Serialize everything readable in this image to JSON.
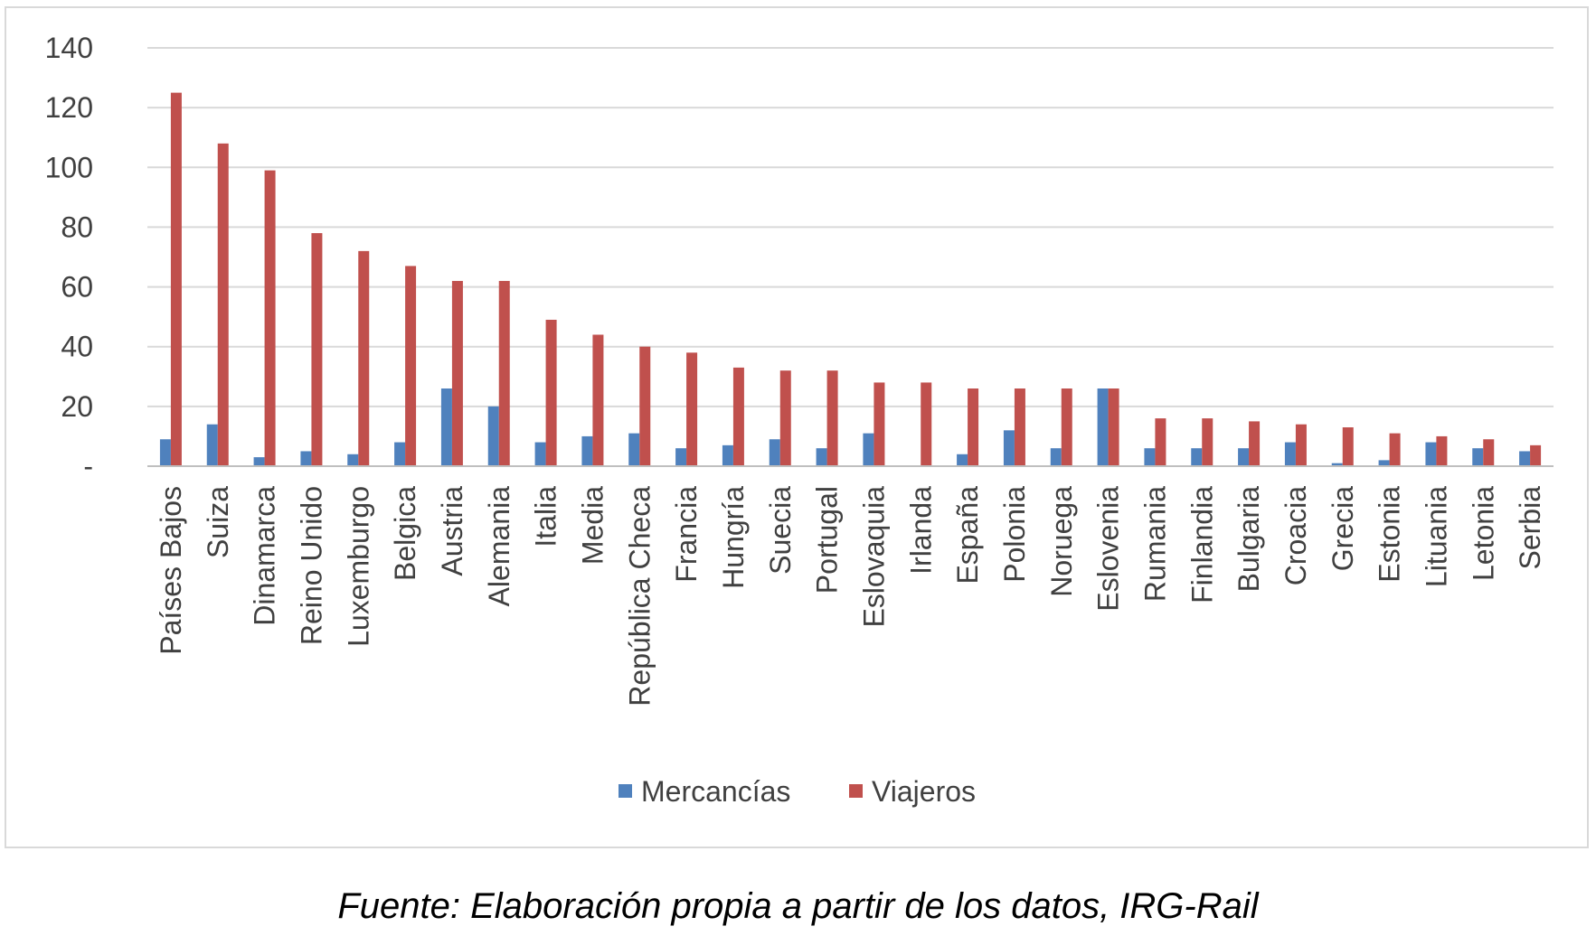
{
  "chart_data": {
    "type": "bar",
    "title": "",
    "xlabel": "",
    "ylabel": "",
    "ylim": [
      0,
      140
    ],
    "yticks": [
      0,
      20,
      40,
      60,
      80,
      100,
      120,
      140
    ],
    "ytick_labels": [
      "-",
      "20",
      "40",
      "60",
      "80",
      "100",
      "120",
      "140"
    ],
    "grid": true,
    "legend_position": "bottom",
    "categories": [
      "Países Bajos",
      "Suiza",
      "Dinamarca",
      "Reino Unido",
      "Luxemburgo",
      "Belgica",
      "Austria",
      "Alemania",
      "Italia",
      "Media",
      "República Checa",
      "Francia",
      "Hungría",
      "Suecia",
      "Portugal",
      "Eslovaquia",
      "Irlanda",
      "España",
      "Polonia",
      "Noruega",
      "Eslovenia",
      "Rumania",
      "Finlandia",
      "Bulgaria",
      "Croacia",
      "Grecia",
      "Estonia",
      "Lituania",
      "Letonia",
      "Serbia"
    ],
    "series": [
      {
        "name": "Mercancías",
        "color": "#4F81BD",
        "values": [
          9,
          14,
          3,
          5,
          4,
          8,
          26,
          20,
          8,
          10,
          11,
          6,
          7,
          9,
          6,
          11,
          0,
          4,
          12,
          6,
          26,
          6,
          6,
          6,
          8,
          1,
          2,
          8,
          6,
          5
        ]
      },
      {
        "name": "Viajeros",
        "color": "#C0504D",
        "values": [
          125,
          108,
          99,
          78,
          72,
          67,
          62,
          62,
          49,
          44,
          40,
          38,
          33,
          32,
          32,
          28,
          28,
          26,
          26,
          26,
          26,
          16,
          16,
          15,
          14,
          13,
          11,
          10,
          9,
          7
        ]
      }
    ]
  },
  "caption": "Fuente: Elaboración propia a partir de los datos, IRG-Rail"
}
